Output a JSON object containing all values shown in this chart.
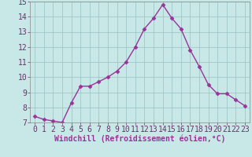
{
  "x": [
    0,
    1,
    2,
    3,
    4,
    5,
    6,
    7,
    8,
    9,
    10,
    11,
    12,
    13,
    14,
    15,
    16,
    17,
    18,
    19,
    20,
    21,
    22,
    23
  ],
  "y": [
    7.4,
    7.2,
    7.1,
    7.0,
    8.3,
    9.4,
    9.4,
    9.7,
    10.0,
    10.4,
    11.0,
    12.0,
    13.2,
    13.9,
    14.8,
    13.9,
    13.2,
    11.8,
    10.7,
    9.5,
    8.9,
    8.9,
    8.5,
    8.1
  ],
  "line_color": "#993399",
  "marker": "D",
  "markersize": 2.5,
  "linewidth": 1.0,
  "bg_color": "#c8e8e8",
  "plot_bg_color": "#c8e8e8",
  "grid_color": "#a0c8c8",
  "xlabel": "Windchill (Refroidissement éolien,°C)",
  "xlabel_fontsize": 7,
  "tick_fontsize": 7,
  "ylim": [
    7,
    15
  ],
  "xlim": [
    -0.5,
    23.5
  ],
  "yticks": [
    7,
    8,
    9,
    10,
    11,
    12,
    13,
    14,
    15
  ],
  "xticks": [
    0,
    1,
    2,
    3,
    4,
    5,
    6,
    7,
    8,
    9,
    10,
    11,
    12,
    13,
    14,
    15,
    16,
    17,
    18,
    19,
    20,
    21,
    22,
    23
  ]
}
